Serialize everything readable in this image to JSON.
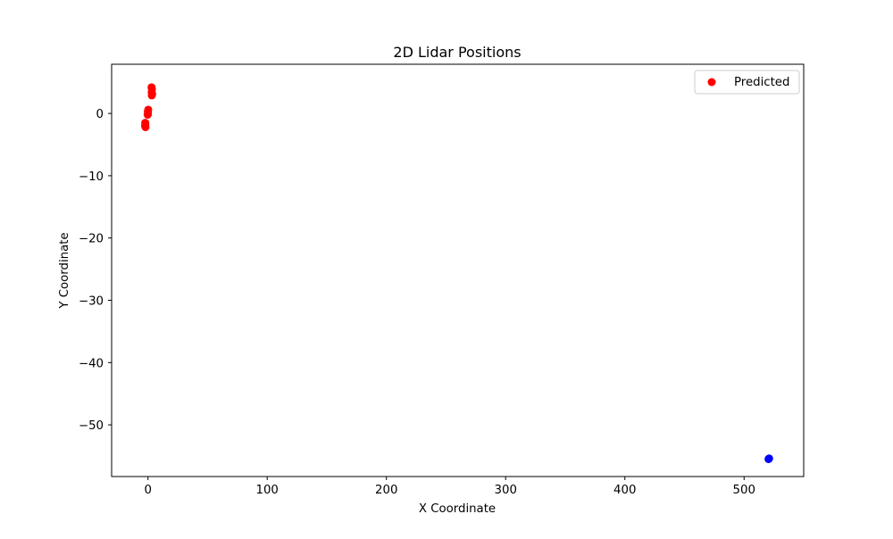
{
  "chart_data": {
    "type": "scatter",
    "title": "2D Lidar Positions",
    "xlabel": "X Coordinate",
    "ylabel": "Y Coordinate",
    "xlim": [
      -30.5,
      550
    ],
    "ylim": [
      -58.3,
      7.9
    ],
    "xticks": [
      0,
      100,
      200,
      300,
      400,
      500
    ],
    "xtick_labels": [
      "0",
      "100",
      "200",
      "300",
      "400",
      "500"
    ],
    "yticks": [
      0,
      -10,
      -20,
      -30,
      -40,
      -50
    ],
    "ytick_labels": [
      "0",
      "−10",
      "−20",
      "−30",
      "−40",
      "−50"
    ],
    "grid": false,
    "legend": {
      "placement": "top-right",
      "entries": [
        "Predicted"
      ]
    },
    "series": [
      {
        "name": "Predicted",
        "color": "#ff0000",
        "points": [
          [
            3.0,
            4.2
          ],
          [
            3.3,
            3.9
          ],
          [
            3.1,
            3.4
          ],
          [
            3.5,
            3.1
          ],
          [
            3.2,
            2.9
          ],
          [
            0.2,
            0.6
          ],
          [
            -0.1,
            0.3
          ],
          [
            0.0,
            -0.1
          ],
          [
            -0.3,
            -0.2
          ],
          [
            -2.3,
            -1.5
          ],
          [
            -2.2,
            -1.8
          ],
          [
            -2.4,
            -2.0
          ],
          [
            -2.1,
            -2.2
          ]
        ]
      },
      {
        "color": "#0000ff",
        "points": [
          [
            520.5,
            -55.5
          ],
          [
            521.0,
            -55.4
          ]
        ]
      }
    ]
  }
}
